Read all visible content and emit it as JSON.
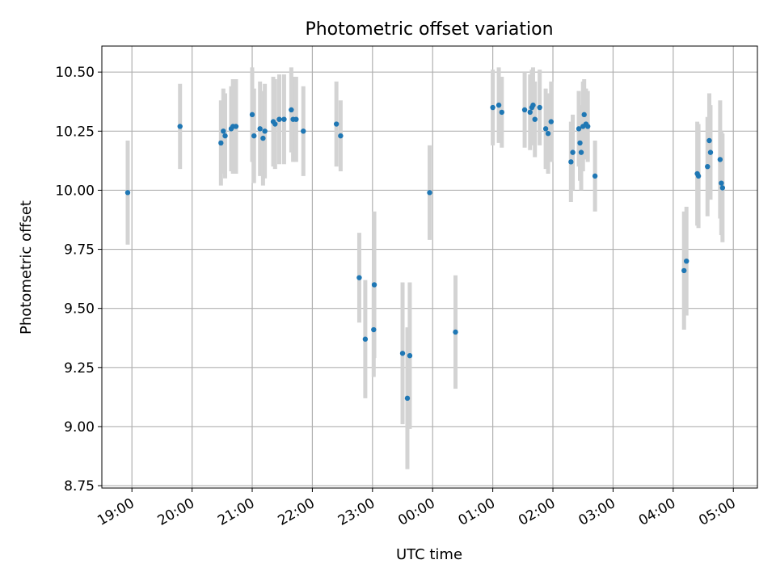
{
  "chart_data": {
    "type": "scatter",
    "title": "Photometric offset variation",
    "xlabel": "UTC time",
    "ylabel": "Photometric offset",
    "x_unit": "hours after 00:00 UTC",
    "xlim": [
      -5.5,
      5.4
    ],
    "ylim": [
      8.74,
      10.61
    ],
    "x_tick_values": [
      -5,
      -4,
      -3,
      -2,
      -1,
      0,
      1,
      2,
      3,
      4,
      5
    ],
    "x_tick_labels": [
      "19:00",
      "20:00",
      "21:00",
      "22:00",
      "23:00",
      "00:00",
      "01:00",
      "02:00",
      "03:00",
      "04:00",
      "05:00"
    ],
    "y_tick_values": [
      8.75,
      9.0,
      9.25,
      9.5,
      9.75,
      10.0,
      10.25,
      10.5
    ],
    "y_tick_labels": [
      "8.75",
      "9.00",
      "9.25",
      "9.50",
      "9.75",
      "10.00",
      "10.25",
      "10.50"
    ],
    "grid": true,
    "colors": {
      "point": "#1f77b4",
      "errorbar": "#d3d3d3",
      "grid": "#b0b0b0"
    },
    "series": [
      {
        "x": [
          -5.07,
          -4.2,
          -3.52,
          -3.48,
          -3.45,
          -3.35,
          -3.32,
          -3.27,
          -3.0,
          -2.97,
          -2.87,
          -2.82,
          -2.79,
          -2.65,
          -2.62,
          -2.55,
          -2.47,
          -2.35,
          -2.32,
          -2.27,
          -2.15,
          -1.6,
          -1.53,
          -1.22,
          -1.12,
          -0.98,
          -0.97,
          -0.5,
          -0.42,
          -0.38,
          -0.05,
          0.38,
          1.0,
          1.1,
          1.15,
          1.53,
          1.62,
          1.65,
          1.67,
          1.7,
          1.78,
          1.88,
          1.92,
          1.97,
          2.3,
          2.33,
          2.43,
          2.45,
          2.47,
          2.5,
          2.52,
          2.55,
          2.58,
          2.7,
          4.18,
          4.22,
          4.4,
          4.42,
          4.57,
          4.6,
          4.62,
          4.78,
          4.8,
          4.82
        ],
        "y": [
          9.99,
          10.27,
          10.2,
          10.25,
          10.23,
          10.26,
          10.27,
          10.27,
          10.32,
          10.23,
          10.26,
          10.22,
          10.25,
          10.29,
          10.28,
          10.3,
          10.3,
          10.34,
          10.3,
          10.3,
          10.25,
          10.28,
          10.23,
          9.63,
          9.37,
          9.41,
          9.6,
          9.31,
          9.12,
          9.3,
          9.99,
          9.4,
          10.35,
          10.36,
          10.33,
          10.34,
          10.33,
          10.35,
          10.36,
          10.3,
          10.35,
          10.26,
          10.24,
          10.29,
          10.12,
          10.16,
          10.26,
          10.2,
          10.16,
          10.27,
          10.32,
          10.28,
          10.27,
          10.06,
          9.66,
          9.7,
          10.07,
          10.06,
          10.1,
          10.21,
          10.16,
          10.13,
          10.03,
          10.01
        ],
        "yerr": [
          0.22,
          0.18,
          0.18,
          0.18,
          0.18,
          0.18,
          0.2,
          0.2,
          0.2,
          0.2,
          0.2,
          0.2,
          0.2,
          0.19,
          0.19,
          0.19,
          0.19,
          0.18,
          0.18,
          0.18,
          0.19,
          0.18,
          0.15,
          0.19,
          0.25,
          0.2,
          0.31,
          0.3,
          0.3,
          0.31,
          0.2,
          0.24,
          0.16,
          0.16,
          0.15,
          0.16,
          0.16,
          0.16,
          0.16,
          0.16,
          0.16,
          0.17,
          0.17,
          0.17,
          0.17,
          0.16,
          0.16,
          0.16,
          0.16,
          0.19,
          0.15,
          0.15,
          0.15,
          0.15,
          0.25,
          0.23,
          0.22,
          0.22,
          0.21,
          0.2,
          0.2,
          0.25,
          0.22,
          0.23
        ]
      }
    ]
  }
}
